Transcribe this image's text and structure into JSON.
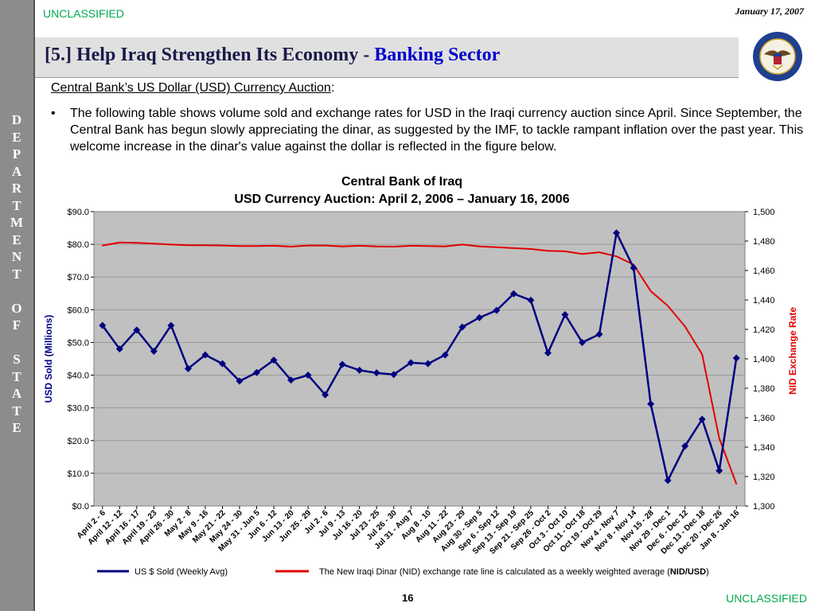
{
  "header": {
    "classification_top": "UNCLASSIFIED",
    "date": "January 17, 2007",
    "title_main": "[5.] Help Iraq Strengthen Its Economy - ",
    "title_accent": "Banking Sector"
  },
  "sidebar": {
    "letters": [
      "D",
      "E",
      "P",
      "A",
      "R",
      "T",
      "M",
      "E",
      "N",
      "T",
      "",
      "O",
      "F",
      "",
      "S",
      "T",
      "A",
      "T",
      "E"
    ]
  },
  "seal": {
    "name": "department-of-state-seal",
    "text": "DEPARTMENT OF STATE · UNITED STATES OF AMERICA"
  },
  "body": {
    "subheading": "Central Bank’s US Dollar (USD) Currency Auction",
    "subheading_suffix": ":",
    "bullet_symbol": "•",
    "bullet_text": "The following table shows volume sold and exchange rates for USD in the Iraqi currency auction since April.  Since September, the Central Bank has begun slowly appreciating the dinar, as suggested by the IMF, to tackle rampant inflation over the past year. This welcome increase in the dinar's value against the dollar is reflected in the figure below."
  },
  "chart_data": {
    "type": "line",
    "title": "Central Bank of Iraq",
    "subtitle": "USD Currency Auction: April 2, 2006 – January 16, 2006",
    "ylabel": "USD Sold (Millions)",
    "y2label": "NID Exchange Rate",
    "ylim": [
      0,
      90
    ],
    "y2lim": [
      1300,
      1500
    ],
    "yticks": [
      "$0.0",
      "$10.0",
      "$20.0",
      "$30.0",
      "$40.0",
      "$50.0",
      "$60.0",
      "$70.0",
      "$80.0",
      "$90.0"
    ],
    "y2ticks": [
      "1,300",
      "1,320",
      "1,340",
      "1,360",
      "1,380",
      "1,400",
      "1,420",
      "1,440",
      "1,460",
      "1,480",
      "1,500"
    ],
    "categories": [
      "April 2 - 6",
      "April 12 - 12",
      "April 16 - 17",
      "April 19 - 23",
      "April 26 - 30",
      "May 2 - 8",
      "May 9 - 16",
      "May 21 - 22",
      "May 24 - 30",
      "May 31 - Jun 5",
      "Jun 6 - 12",
      "Jun 13 - 20",
      "Jun 25 - 29",
      "Jul 2 - 6",
      "Jul 9 - 13",
      "Jul 16 - 20",
      "Jul 23 - 25",
      "Jul 26 - 30",
      "Jul 31 - Aug 7",
      "Aug 8 - 10",
      "Aug 11 - 22",
      "Aug 23 - 29",
      "Aug 30 - Sep 5",
      "Sep 6 - Sep 12",
      "Sep 13 - Sep 19",
      "Sep 21 - Sep 25",
      "Sep 26 - Oct 2",
      "Oct 3 - Oct 10",
      "Oct 11 - Oct 18",
      "Oct 19 - Oct 29",
      "Nov 4 - Nov 7",
      "Nov 8 - Nov 14",
      "Nov 15 - 28",
      "Nov 29 - Dec 1",
      "Dec 6 - Dec 12",
      "Dec 13 - Dec 18",
      "Dec 20 - Dec 26",
      "Jan 8 - Jan 16"
    ],
    "series": [
      {
        "name": "US $ Sold (Weekly Avg)",
        "axis": "left",
        "color": "#000080",
        "marker": "diamond",
        "values": [
          55.2,
          48.0,
          53.8,
          47.3,
          55.2,
          42.0,
          46.2,
          43.5,
          38.2,
          40.8,
          44.6,
          38.5,
          40.0,
          34.0,
          43.3,
          41.5,
          40.7,
          40.2,
          43.8,
          43.5,
          46.2,
          54.7,
          57.6,
          59.8,
          64.9,
          62.9,
          46.8,
          58.5,
          50.0,
          52.5,
          83.5,
          72.8,
          31.2,
          7.8,
          18.3,
          26.5,
          10.8,
          45.2
        ]
      },
      {
        "name": "The New Iraqi Dinar (NID) exchange rate line is calculated as a weekly weighted average (NID/USD)",
        "axis": "right",
        "color": "#e00000",
        "marker": "none",
        "values": [
          1477,
          1479,
          1478.8,
          1478.2,
          1477.6,
          1477.2,
          1477.2,
          1477.0,
          1476.6,
          1476.6,
          1476.8,
          1476.2,
          1477.0,
          1477.0,
          1476.4,
          1476.8,
          1476.4,
          1476.2,
          1476.8,
          1476.6,
          1476.4,
          1477.6,
          1476.4,
          1475.8,
          1475.2,
          1474.6,
          1473.4,
          1473.0,
          1471.2,
          1472.4,
          1469.6,
          1464.0,
          1446.0,
          1436.0,
          1422.0,
          1403.0,
          1346.0,
          1315.0
        ]
      }
    ],
    "grid": true,
    "legend_position": "bottom",
    "plot_background": "#c0c0c0"
  },
  "legend": {
    "series1_label": "US $ Sold (Weekly Avg)",
    "series2_label_prefix": "The New Iraqi Dinar (NID) exchange rate line is calculated as a weekly weighted average (",
    "series2_label_bold": "NID/USD",
    "series2_label_suffix": ")"
  },
  "footer": {
    "page_number": "16",
    "classification_bottom": "UNCLASSIFIED"
  },
  "colors": {
    "classification": "#00a84f",
    "title_accent": "#0000cc",
    "sidebar": "#8c8c8c",
    "series1": "#000080",
    "series2": "#e00000",
    "ylabel_left": "#00008b",
    "ylabel_right": "#e00000"
  }
}
